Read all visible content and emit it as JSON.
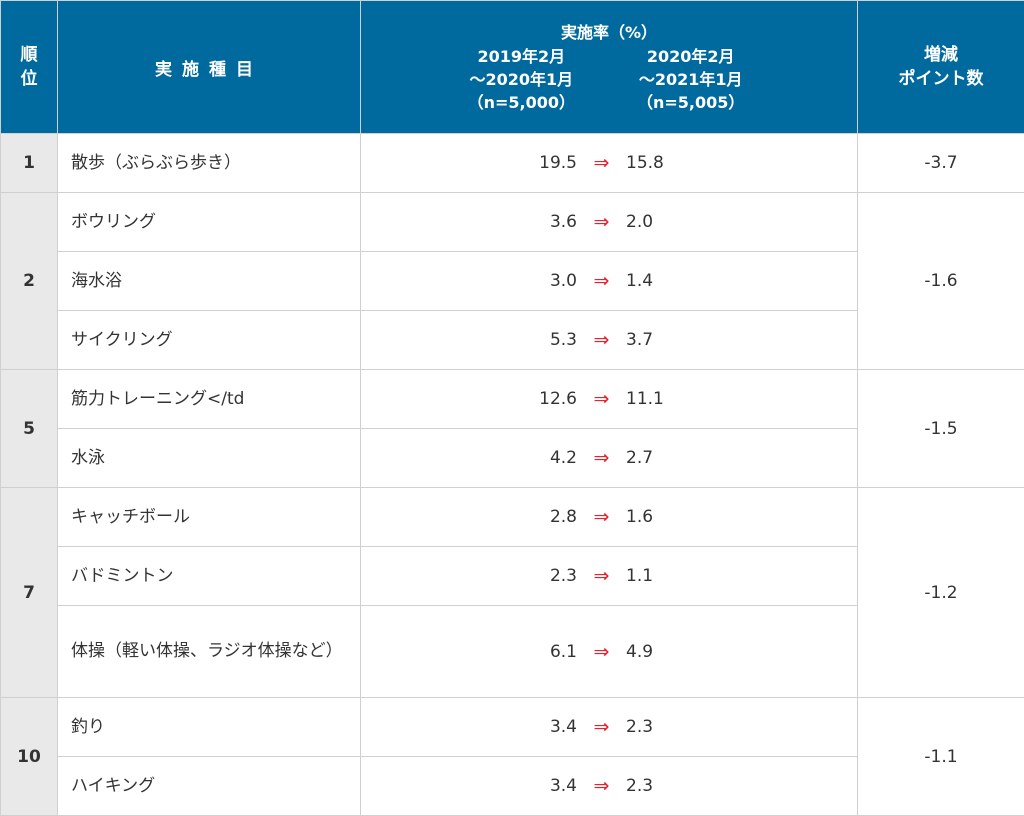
{
  "header": {
    "rank": "順位",
    "item": "実施種目",
    "rate_title": "実施率（%）",
    "period1": [
      "2019年2月",
      "～2020年1月",
      "（n=5,000）"
    ],
    "period2": [
      "2020年2月",
      "～2021年1月",
      "（n=5,005）"
    ],
    "diff": [
      "増減",
      "ポイント数"
    ]
  },
  "arrow": "⇒",
  "groups": [
    {
      "rank": "1",
      "diff": "-3.7",
      "rows": [
        {
          "item": "散歩（ぶらぶら歩き）",
          "v2019": "19.5",
          "v2020": "15.8"
        }
      ]
    },
    {
      "rank": "2",
      "diff": "-1.6",
      "rows": [
        {
          "item": "ボウリング",
          "v2019": "3.6",
          "v2020": "2.0"
        },
        {
          "item": "海水浴",
          "v2019": "3.0",
          "v2020": "1.4"
        },
        {
          "item": "サイクリング",
          "v2019": "5.3",
          "v2020": "3.7"
        }
      ]
    },
    {
      "rank": "5",
      "diff": "-1.5",
      "rows": [
        {
          "item": "筋力トレーニング</td",
          "v2019": "12.6",
          "v2020": "11.1"
        },
        {
          "item": "水泳",
          "v2019": "4.2",
          "v2020": "2.7"
        }
      ]
    },
    {
      "rank": "7",
      "diff": "-1.2",
      "rows": [
        {
          "item": "キャッチボール",
          "v2019": "2.8",
          "v2020": "1.6"
        },
        {
          "item": "バドミントン",
          "v2019": "2.3",
          "v2020": "1.1"
        },
        {
          "item": "体操（軽い体操、ラジオ体操など）",
          "v2019": "6.1",
          "v2020": "4.9"
        }
      ]
    },
    {
      "rank": "10",
      "diff": "-1.1",
      "rows": [
        {
          "item": "釣り",
          "v2019": "3.4",
          "v2020": "2.3"
        },
        {
          "item": "ハイキング",
          "v2019": "3.4",
          "v2020": "2.3"
        }
      ]
    }
  ]
}
